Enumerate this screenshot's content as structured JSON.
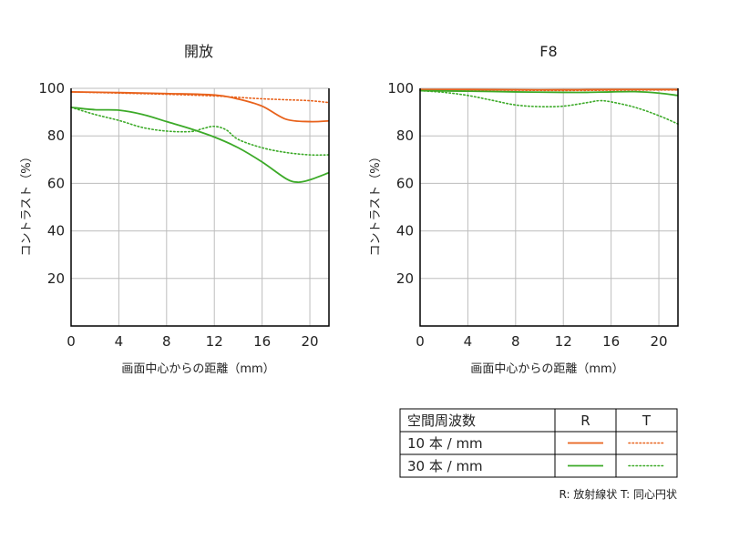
{
  "chart_data": [
    {
      "type": "line",
      "title": "開放",
      "xlabel": "画面中心からの距離（mm）",
      "ylabel": "コントラスト（%）",
      "xlim": [
        0,
        21.6
      ],
      "ylim": [
        0,
        100
      ],
      "xticks": [
        0,
        4,
        8,
        12,
        16,
        20
      ],
      "yticks": [
        20,
        40,
        60,
        80,
        100
      ],
      "grid": true,
      "series": [
        {
          "name": "10 本 / mm R",
          "color": "#e8621c",
          "style": "solid",
          "x": [
            0,
            4,
            8,
            12,
            14,
            16,
            18,
            20,
            21.6
          ],
          "y": [
            98.5,
            98.2,
            97.8,
            97.2,
            95.5,
            92.5,
            87,
            86,
            86.3
          ]
        },
        {
          "name": "10 本 / mm T",
          "color": "#e8621c",
          "style": "dotted",
          "x": [
            0,
            4,
            8,
            12,
            14,
            16,
            18,
            20,
            21.6
          ],
          "y": [
            98.5,
            98,
            97.5,
            96.8,
            96.2,
            95.6,
            95.2,
            94.8,
            94
          ]
        },
        {
          "name": "30 本 / mm R",
          "color": "#3caa28",
          "style": "solid",
          "x": [
            0,
            2,
            4,
            6,
            8,
            10,
            12,
            14,
            16,
            18,
            19,
            20,
            21.6
          ],
          "y": [
            92,
            91,
            90.8,
            89,
            86,
            83,
            79.5,
            75,
            69,
            62,
            60.5,
            61.5,
            64.5
          ]
        },
        {
          "name": "30 本 / mm T",
          "color": "#3caa28",
          "style": "dotted",
          "x": [
            0,
            2,
            4,
            6,
            8,
            10,
            11,
            12,
            13,
            14,
            16,
            18,
            20,
            21.6
          ],
          "y": [
            92,
            89,
            86.5,
            83.5,
            82,
            81.8,
            83,
            84,
            82.5,
            78.5,
            75,
            73,
            72,
            72
          ]
        }
      ]
    },
    {
      "type": "line",
      "title": "F8",
      "xlabel": "画面中心からの距離（mm）",
      "ylabel": "コントラスト（%）",
      "xlim": [
        0,
        21.6
      ],
      "ylim": [
        0,
        100
      ],
      "xticks": [
        0,
        4,
        8,
        12,
        16,
        20
      ],
      "yticks": [
        20,
        40,
        60,
        80,
        100
      ],
      "grid": true,
      "series": [
        {
          "name": "10 本 / mm R",
          "color": "#e8621c",
          "style": "solid",
          "x": [
            0,
            4,
            8,
            12,
            16,
            20,
            21.6
          ],
          "y": [
            99.5,
            99.5,
            99.4,
            99.4,
            99.5,
            99.5,
            99.5
          ]
        },
        {
          "name": "10 本 / mm T",
          "color": "#e8621c",
          "style": "dotted",
          "x": [
            0,
            4,
            8,
            12,
            16,
            20,
            21.6
          ],
          "y": [
            99.4,
            99.3,
            99.2,
            99.1,
            99.2,
            99.3,
            99.3
          ]
        },
        {
          "name": "30 本 / mm R",
          "color": "#3caa28",
          "style": "solid",
          "x": [
            0,
            4,
            8,
            12,
            14,
            16,
            18,
            20,
            21.6
          ],
          "y": [
            99,
            98.8,
            98.5,
            98.3,
            98.3,
            98.5,
            98.6,
            98,
            97
          ]
        },
        {
          "name": "30 本 / mm T",
          "color": "#3caa28",
          "style": "dotted",
          "x": [
            0,
            2,
            4,
            6,
            8,
            10,
            12,
            14,
            15,
            16,
            18,
            20,
            21.6
          ],
          "y": [
            99,
            98.3,
            97,
            95,
            93,
            92.3,
            92.5,
            94,
            94.8,
            94.3,
            92,
            88.5,
            85
          ]
        }
      ]
    }
  ],
  "legend": {
    "header": "空間周波数",
    "col_r": "R",
    "col_t": "T",
    "rows": [
      {
        "label": "10 本 / mm",
        "color": "#e8621c"
      },
      {
        "label": "30 本 / mm",
        "color": "#3caa28"
      }
    ]
  },
  "footnote": "R: 放射線状  T: 同心円状"
}
